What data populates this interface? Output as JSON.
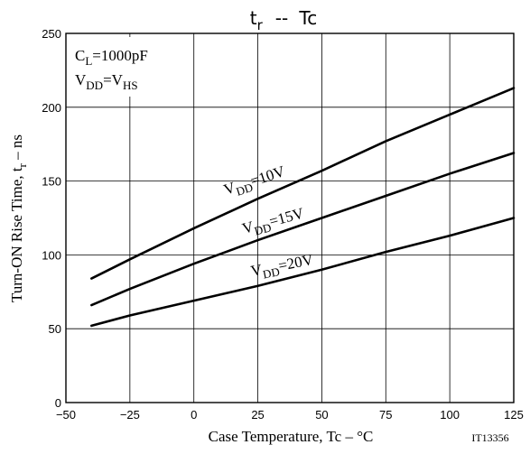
{
  "chart_data": {
    "type": "line",
    "title": {
      "main": "t",
      "sub": "r",
      "sep": "--",
      "rhs": "Tc"
    },
    "xlabel": "Case Temperature, Tc  –  °C",
    "ylabel": {
      "main": "Turn-ON Rise Time, t",
      "sub": "r",
      "unit": " – ns"
    },
    "xlim": [
      -50,
      125
    ],
    "ylim": [
      0,
      250
    ],
    "xticks": [
      -50,
      -25,
      0,
      25,
      50,
      75,
      100,
      125
    ],
    "xtick_labels": [
      "−50",
      "−25",
      "0",
      "25",
      "50",
      "75",
      "100",
      "125"
    ],
    "yticks": [
      0,
      50,
      100,
      150,
      200,
      250
    ],
    "ytick_labels": [
      "0",
      "50",
      "100",
      "150",
      "200",
      "250"
    ],
    "grid": true,
    "figure_id": "IT13356",
    "conditions": [
      {
        "main": "C",
        "sub": "L",
        "rest": "=1000pF"
      },
      {
        "main": "V",
        "sub": "DD",
        "rest": "=V",
        "sub2": "HS"
      }
    ],
    "series": [
      {
        "name": "VDD=10V",
        "label": {
          "main": "V",
          "sub": "DD",
          "rest": "=10V"
        },
        "x": [
          -40,
          -25,
          0,
          25,
          50,
          75,
          100,
          125
        ],
        "y": [
          84,
          97,
          118,
          138,
          157,
          177,
          195,
          213
        ]
      },
      {
        "name": "VDD=15V",
        "label": {
          "main": "V",
          "sub": "DD",
          "rest": "=15V"
        },
        "x": [
          -40,
          -25,
          0,
          25,
          50,
          75,
          100,
          125
        ],
        "y": [
          66,
          77,
          94,
          110,
          125,
          140,
          155,
          169
        ]
      },
      {
        "name": "VDD=20V",
        "label": {
          "main": "V",
          "sub": "DD",
          "rest": "=20V"
        },
        "x": [
          -40,
          -25,
          0,
          25,
          50,
          75,
          100,
          125
        ],
        "y": [
          52,
          59,
          69,
          79,
          90,
          102,
          113,
          125
        ]
      }
    ]
  }
}
